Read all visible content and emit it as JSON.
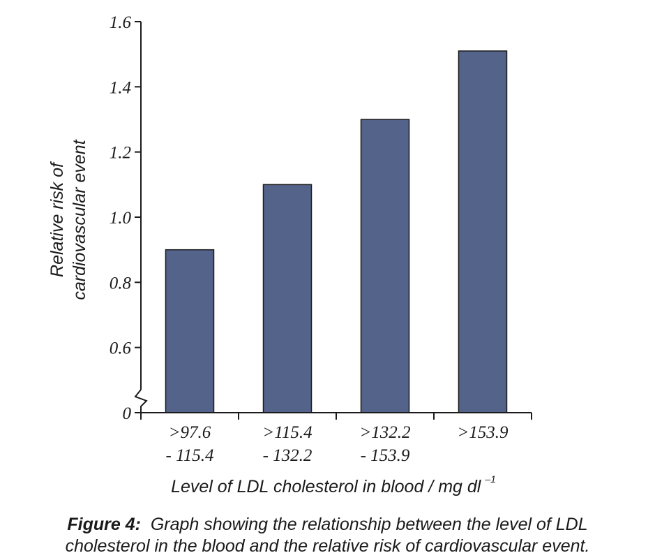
{
  "chart_data": {
    "type": "bar",
    "categories": [
      [
        ">97.6",
        "- 115.4"
      ],
      [
        ">115.4",
        "- 132.2"
      ],
      [
        ">132.2",
        "- 153.9"
      ],
      [
        ">153.9"
      ]
    ],
    "values": [
      0.9,
      1.1,
      1.3,
      1.51
    ],
    "xlabel": "Level of LDL cholesterol in blood / mg dl",
    "xlabel_superscript": "–1",
    "ylabel": [
      "Relative risk of",
      "cardiovascular event"
    ],
    "ylim": [
      0.4,
      1.6
    ],
    "axis_break": true,
    "yticks": [
      {
        "value": 0.4,
        "label": "0"
      },
      {
        "value": 0.6,
        "label": "0.6"
      },
      {
        "value": 0.8,
        "label": "0.8"
      },
      {
        "value": 1.0,
        "label": "1.0"
      },
      {
        "value": 1.2,
        "label": "1.2"
      },
      {
        "value": 1.4,
        "label": "1.4"
      },
      {
        "value": 1.6,
        "label": "1.6"
      }
    ],
    "bar_color": "#536389",
    "grid": false,
    "legend": "none"
  },
  "caption": {
    "label": "Figure 4:",
    "line1": "Graph showing the relationship between the level of LDL",
    "line2": "cholesterol in the blood and the relative risk of cardiovascular event."
  }
}
